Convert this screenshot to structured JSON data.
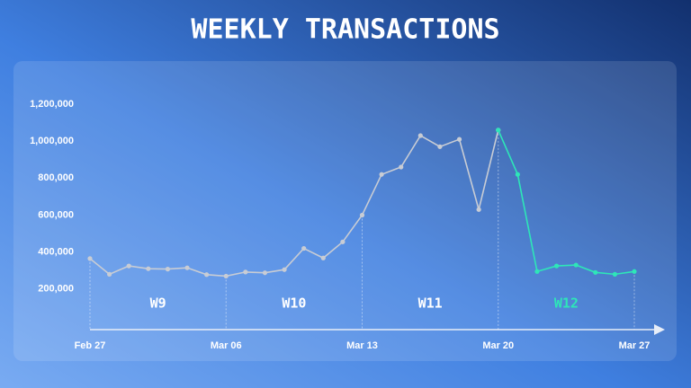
{
  "chart_data": {
    "type": "line",
    "title": "WEEKLY TRANSACTIONS",
    "categories": [
      "Feb 27",
      null,
      null,
      null,
      null,
      null,
      null,
      "Mar 06",
      null,
      null,
      null,
      null,
      null,
      null,
      "Mar 13",
      null,
      null,
      null,
      null,
      null,
      null,
      "Mar 20",
      null,
      null,
      null,
      null,
      null,
      null,
      "Mar 27"
    ],
    "series": [
      {
        "color": "#c8ccd4",
        "values": [
          365000,
          280000,
          325000,
          310000,
          308000,
          315000,
          278000,
          270000,
          292000,
          288000,
          305000,
          420000,
          368000,
          455000,
          600000,
          820000,
          860000,
          1030000,
          970000,
          1010000,
          630000,
          1060000,
          null,
          null,
          null,
          null,
          null,
          null,
          null
        ]
      },
      {
        "color": "#2ee6b8",
        "values": [
          null,
          null,
          null,
          null,
          null,
          null,
          null,
          null,
          null,
          null,
          null,
          null,
          null,
          null,
          null,
          null,
          null,
          null,
          null,
          null,
          null,
          1060000,
          820000,
          295000,
          325000,
          330000,
          290000,
          280000,
          295000
        ]
      }
    ],
    "week_labels": [
      {
        "text": "W9",
        "color": "#ffffff"
      },
      {
        "text": "W10",
        "color": "#ffffff"
      },
      {
        "text": "W11",
        "color": "#ffffff"
      },
      {
        "text": "W12",
        "color": "#2ee6b8"
      }
    ],
    "ylim": [
      0,
      1200000
    ],
    "yticks": [
      {
        "value": 200000,
        "label": "200,000"
      },
      {
        "value": 400000,
        "label": "400,000"
      },
      {
        "value": 600000,
        "label": "600,000"
      },
      {
        "value": 800000,
        "label": "800,000"
      },
      {
        "value": 1000000,
        "label": "1,000,000"
      },
      {
        "value": 1200000,
        "label": "1,200,000"
      }
    ]
  }
}
